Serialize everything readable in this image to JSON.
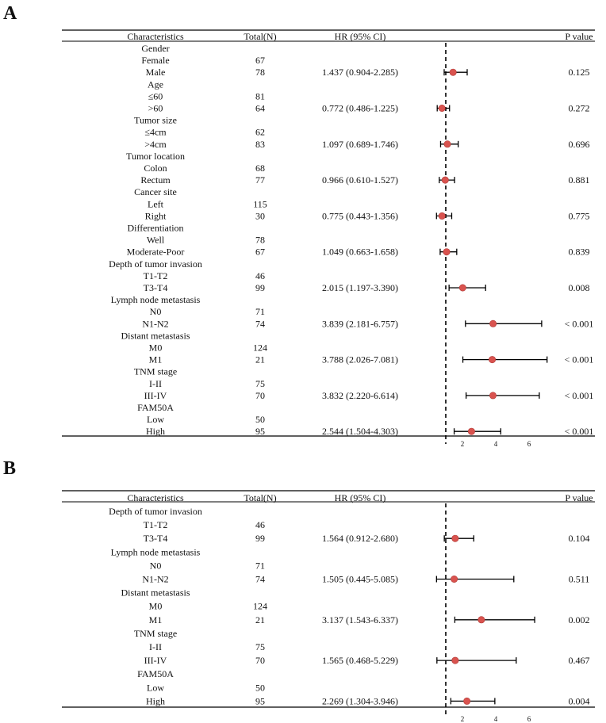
{
  "panels": [
    {
      "letter": "A",
      "columns": {
        "characteristics": "Characteristics",
        "total": "Total(N)",
        "hr": "HR (95% CI)",
        "p": "P value"
      },
      "ticks": [
        2,
        4,
        6
      ],
      "reference_line": 1,
      "rows": [
        {
          "label": "Gender",
          "kind": "group"
        },
        {
          "label": "Female",
          "total": "67"
        },
        {
          "label": "Male",
          "total": "78",
          "hr_text": "1.437 (0.904-2.285)",
          "p": "0.125",
          "hr": 1.437,
          "lo": 0.904,
          "hi": 2.285
        },
        {
          "label": "Age",
          "kind": "group"
        },
        {
          "label": "≤60",
          "total": "81"
        },
        {
          "label": ">60",
          "total": "64",
          "hr_text": "0.772 (0.486-1.225)",
          "p": "0.272",
          "hr": 0.772,
          "lo": 0.486,
          "hi": 1.225
        },
        {
          "label": "Tumor size",
          "kind": "group"
        },
        {
          "label": "≤4cm",
          "total": "62"
        },
        {
          "label": ">4cm",
          "total": "83",
          "hr_text": "1.097 (0.689-1.746)",
          "p": "0.696",
          "hr": 1.097,
          "lo": 0.689,
          "hi": 1.746
        },
        {
          "label": "Tumor location",
          "kind": "group"
        },
        {
          "label": "Colon",
          "total": "68"
        },
        {
          "label": "Rectum",
          "total": "77",
          "hr_text": "0.966 (0.610-1.527)",
          "p": "0.881",
          "hr": 0.966,
          "lo": 0.61,
          "hi": 1.527
        },
        {
          "label": "Cancer site",
          "kind": "group"
        },
        {
          "label": "Left",
          "total": "115"
        },
        {
          "label": "Right",
          "total": "30",
          "hr_text": "0.775 (0.443-1.356)",
          "p": "0.775",
          "hr": 0.775,
          "lo": 0.443,
          "hi": 1.356
        },
        {
          "label": "Differentiation",
          "kind": "group"
        },
        {
          "label": "Well",
          "total": "78"
        },
        {
          "label": "Moderate-Poor",
          "total": "67",
          "hr_text": "1.049 (0.663-1.658)",
          "p": "0.839",
          "hr": 1.049,
          "lo": 0.663,
          "hi": 1.658
        },
        {
          "label": "Depth of tumor invasion",
          "kind": "group"
        },
        {
          "label": "T1-T2",
          "total": "46"
        },
        {
          "label": "T3-T4",
          "total": "99",
          "hr_text": "2.015 (1.197-3.390)",
          "p": "0.008",
          "hr": 2.015,
          "lo": 1.197,
          "hi": 3.39
        },
        {
          "label": "Lymph node metastasis",
          "kind": "group"
        },
        {
          "label": "N0",
          "total": "71"
        },
        {
          "label": "N1-N2",
          "total": "74",
          "hr_text": "3.839 (2.181-6.757)",
          "p": "< 0.001",
          "hr": 3.839,
          "lo": 2.181,
          "hi": 6.757
        },
        {
          "label": "Distant metastasis",
          "kind": "group"
        },
        {
          "label": "M0",
          "total": "124"
        },
        {
          "label": "M1",
          "total": "21",
          "hr_text": "3.788 (2.026-7.081)",
          "p": "< 0.001",
          "hr": 3.788,
          "lo": 2.026,
          "hi": 7.081
        },
        {
          "label": "TNM stage",
          "kind": "group"
        },
        {
          "label": "I-II",
          "total": "75"
        },
        {
          "label": "III-IV",
          "total": "70",
          "hr_text": "3.832 (2.220-6.614)",
          "p": "< 0.001",
          "hr": 3.832,
          "lo": 2.22,
          "hi": 6.614
        },
        {
          "label": "FAM50A",
          "kind": "group"
        },
        {
          "label": "Low",
          "total": "50"
        },
        {
          "label": "High",
          "total": "95",
          "hr_text": "2.544 (1.504-4.303)",
          "p": "< 0.001",
          "hr": 2.544,
          "lo": 1.504,
          "hi": 4.303
        }
      ]
    },
    {
      "letter": "B",
      "columns": {
        "characteristics": "Characteristics",
        "total": "Total(N)",
        "hr": "HR (95% CI)",
        "p": "P value"
      },
      "ticks": [
        2,
        4,
        6
      ],
      "reference_line": 1,
      "rows": [
        {
          "label": "Depth of tumor invasion",
          "kind": "group"
        },
        {
          "label": "T1-T2",
          "total": "46"
        },
        {
          "label": "T3-T4",
          "total": "99",
          "hr_text": "1.564 (0.912-2.680)",
          "p": "0.104",
          "hr": 1.564,
          "lo": 0.912,
          "hi": 2.68
        },
        {
          "label": "Lymph node metastasis",
          "kind": "group"
        },
        {
          "label": "N0",
          "total": "71"
        },
        {
          "label": "N1-N2",
          "total": "74",
          "hr_text": "1.505 (0.445-5.085)",
          "p": "0.511",
          "hr": 1.505,
          "lo": 0.445,
          "hi": 5.085
        },
        {
          "label": "Distant metastasis",
          "kind": "group"
        },
        {
          "label": "M0",
          "total": "124"
        },
        {
          "label": "M1",
          "total": "21",
          "hr_text": "3.137 (1.543-6.337)",
          "p": "0.002",
          "hr": 3.137,
          "lo": 1.543,
          "hi": 6.337
        },
        {
          "label": "TNM stage",
          "kind": "group"
        },
        {
          "label": "I-II",
          "total": "75"
        },
        {
          "label": "III-IV",
          "total": "70",
          "hr_text": "1.565 (0.468-5.229)",
          "p": "0.467",
          "hr": 1.565,
          "lo": 0.468,
          "hi": 5.229
        },
        {
          "label": "FAM50A",
          "kind": "group"
        },
        {
          "label": "Low",
          "total": "50"
        },
        {
          "label": "High",
          "total": "95",
          "hr_text": "2.269 (1.304-3.946)",
          "p": "0.004",
          "hr": 2.269,
          "lo": 1.304,
          "hi": 3.946
        }
      ]
    }
  ],
  "colors": {
    "point": "#d9534f",
    "line": "#000000",
    "text": "#111111"
  },
  "chart_data": [
    {
      "type": "forest",
      "title": "A",
      "xlabel": "",
      "ylabel": "",
      "x_ticks": [
        2,
        4,
        6
      ],
      "reference_line": 1,
      "series": [
        {
          "name": "Hazard ratio (95% CI)",
          "categories": [
            "Male",
            ">60",
            ">4cm",
            "Rectum",
            "Right",
            "Moderate-Poor",
            "T3-T4",
            "N1-N2",
            "M1",
            "III-IV",
            "High"
          ],
          "values": [
            1.437,
            0.772,
            1.097,
            0.966,
            0.775,
            1.049,
            2.015,
            3.839,
            3.788,
            3.832,
            2.544
          ],
          "lower": [
            0.904,
            0.486,
            0.689,
            0.61,
            0.443,
            0.663,
            1.197,
            2.181,
            2.026,
            2.22,
            1.504
          ],
          "upper": [
            2.285,
            1.225,
            1.746,
            1.527,
            1.356,
            1.658,
            3.39,
            6.757,
            7.081,
            6.614,
            4.303
          ]
        }
      ]
    },
    {
      "type": "forest",
      "title": "B",
      "xlabel": "",
      "ylabel": "",
      "x_ticks": [
        2,
        4,
        6
      ],
      "reference_line": 1,
      "series": [
        {
          "name": "Hazard ratio (95% CI)",
          "categories": [
            "T3-T4",
            "N1-N2",
            "M1",
            "III-IV",
            "High"
          ],
          "values": [
            1.564,
            1.505,
            3.137,
            1.565,
            2.269
          ],
          "lower": [
            0.912,
            0.445,
            1.543,
            0.468,
            1.304
          ],
          "upper": [
            2.68,
            5.085,
            6.337,
            5.229,
            3.946
          ]
        }
      ]
    }
  ]
}
